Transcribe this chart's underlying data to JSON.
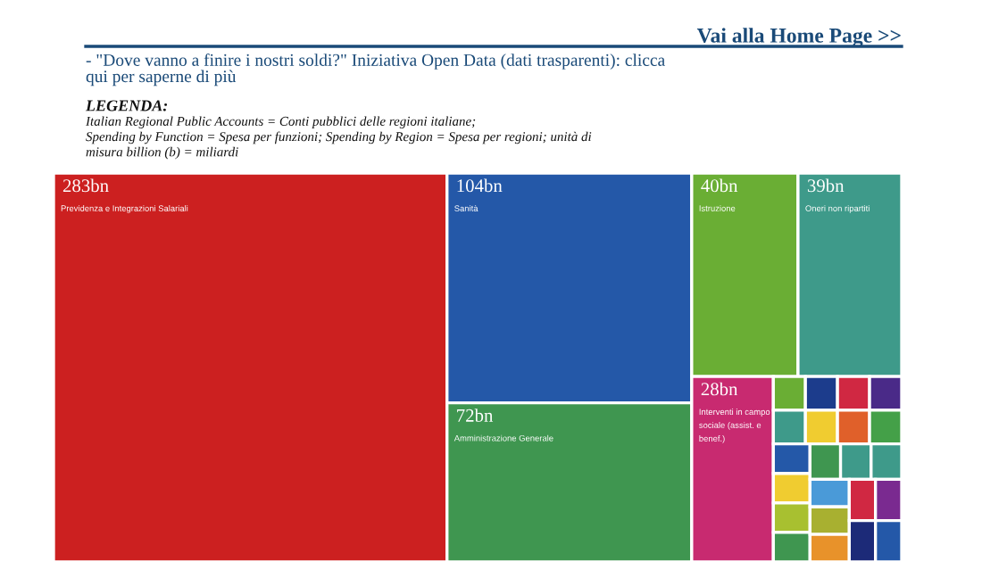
{
  "chart_data": {
    "type": "other",
    "title": "Vai alla Home Page >>",
    "subtitle": "- \"Dove vanno a finire i nostri soldi?\" Iniziativa Open Data (dati trasparenti): clicca\nqui per saperne di più",
    "annotations": [
      "LEGENDA:",
      "Italian Regional Public Accounts = Conti pubblici delle regioni italiane;",
      "Spending by Function = Spesa per funzioni; Spending by Region = Spesa per regioni; unità di",
      "misura billion (b) = miliardi"
    ],
    "categories": [
      "Previdenza e Integrazioni Salariali",
      "Sanità",
      "Amministrazione Generale",
      "Istruzione",
      "Oneri non ripartiti",
      "Interventi in campo\nsociale (assist. e\nbenef.)",
      null,
      null,
      null,
      null,
      null,
      null,
      null,
      null,
      null,
      null,
      null,
      null,
      null,
      null,
      null,
      null,
      null,
      null,
      null,
      null,
      null,
      null
    ],
    "values": [
      283,
      104,
      72,
      40,
      39,
      28,
      null,
      null,
      null,
      null,
      null,
      null,
      null,
      null,
      null,
      null,
      null,
      null,
      null,
      null,
      null,
      null,
      null,
      null,
      null,
      null,
      null,
      null
    ],
    "value_labels": [
      "283bn",
      "104bn",
      "72bn",
      "40bn",
      "39bn",
      "28bn",
      null,
      null,
      null,
      null,
      null,
      null,
      null,
      null,
      null,
      null,
      null,
      null,
      null,
      null,
      null,
      null,
      null,
      null,
      null,
      null,
      null,
      null
    ],
    "colors": [
      "#cc2020",
      "#2458a8",
      "#3f9650",
      "#6aae34",
      "#3e9a8a",
      "#c82a70",
      "#6aae34",
      "#1c3c8c",
      "#d02842",
      "#4a2a88",
      "#3e9a8a",
      "#f0cc30",
      "#e0602a",
      "#44a048",
      "#2458a8",
      "#f0cc30",
      "#a8c030",
      "#3f9650",
      "#3f9650",
      "#3e9a8a",
      "#3e9a8a",
      "#4a9ad8",
      "#a8b030",
      "#e8922a",
      "#d02842",
      "#7a2a90",
      "#1c2a78",
      "#2458a8"
    ]
  }
}
